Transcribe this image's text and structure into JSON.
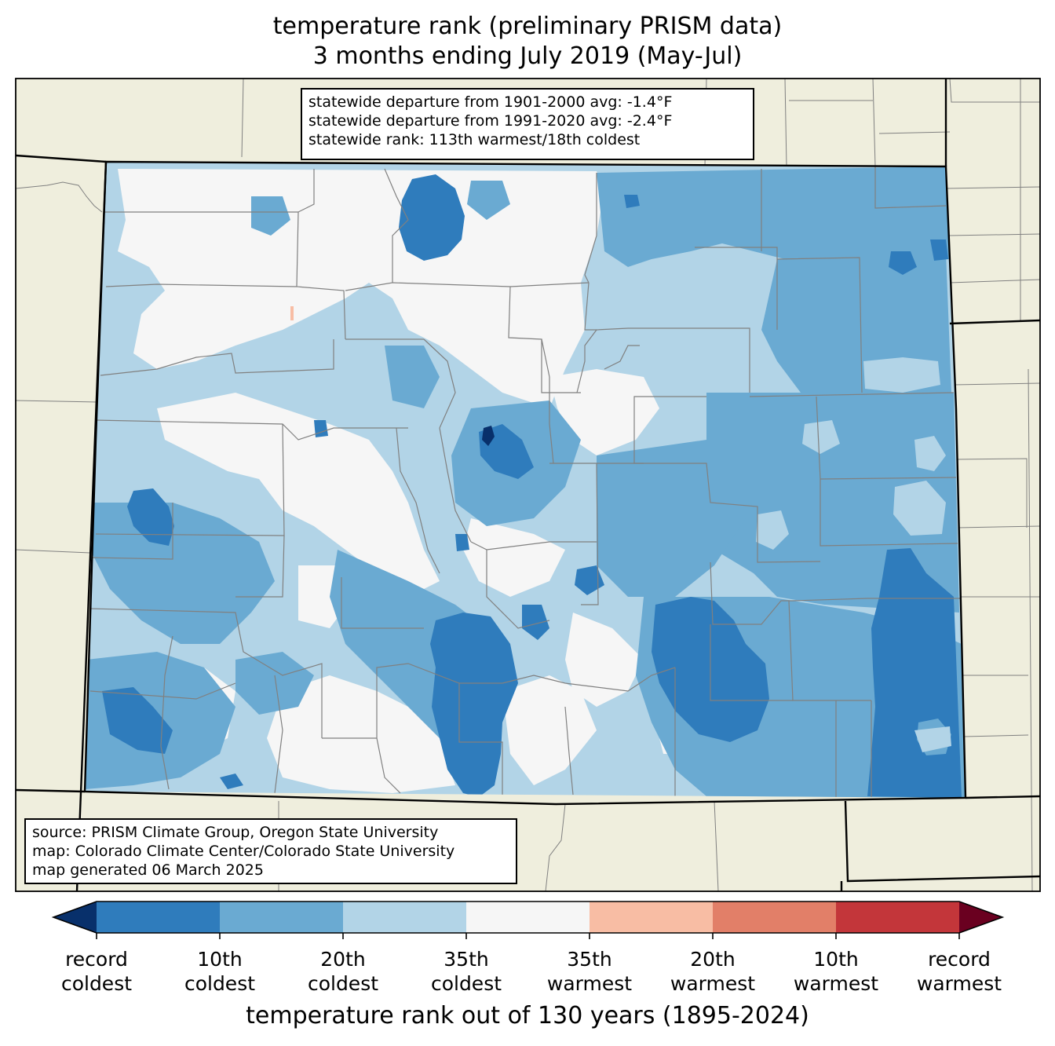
{
  "title": {
    "line1": "temperature rank (preliminary PRISM data)",
    "line2": "3 months ending July 2019 (May-Jul)"
  },
  "stats": {
    "line1": "statewide departure from 1901-2000 avg: -1.4°F",
    "line2": "statewide departure from 1991-2020 avg: -2.4°F",
    "line3": "statewide rank: 113th warmest/18th coldest"
  },
  "source": {
    "line1": "source: PRISM Climate Group, Oregon State University",
    "line2": "map: Colorado Climate Center/Colorado State University",
    "line3": "map generated 06 March 2025"
  },
  "colorbar": {
    "title": "temperature rank out of 130 years (1895-2024)",
    "colors": {
      "under": "#08306b",
      "bins": [
        "#2f7cbc",
        "#6aaad2",
        "#b2d4e7",
        "#f6f6f6",
        "#f8bda4",
        "#e27f68",
        "#c3363a"
      ],
      "over": "#6a0020"
    },
    "ticks": [
      {
        "l1": "record",
        "l2": "coldest"
      },
      {
        "l1": "10th",
        "l2": "coldest"
      },
      {
        "l1": "20th",
        "l2": "coldest"
      },
      {
        "l1": "35th",
        "l2": "coldest"
      },
      {
        "l1": "35th",
        "l2": "warmest"
      },
      {
        "l1": "20th",
        "l2": "warmest"
      },
      {
        "l1": "10th",
        "l2": "warmest"
      },
      {
        "l1": "record",
        "l2": "warmest"
      }
    ]
  },
  "map_colors": {
    "land": "#efeedd",
    "record_coldest": "#08306b",
    "coldest_10": "#2f7cbc",
    "coldest_20": "#6aaad2",
    "coldest_35": "#b2d4e7",
    "middle": "#f6f6f6",
    "warmest_35": "#f8bda4",
    "county_line": "#808080",
    "state_line": "#000000"
  }
}
